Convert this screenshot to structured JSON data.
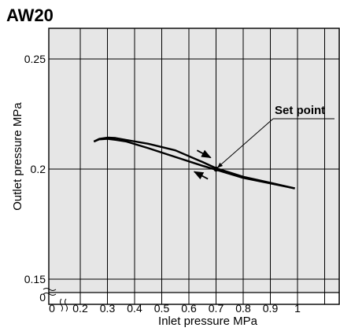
{
  "chart_data": {
    "type": "line",
    "title": "AW20",
    "xlabel": "Inlet pressure  MPa",
    "ylabel": "Outlet pressure  MPa",
    "xlim": [
      0.2,
      1.1
    ],
    "ylim": [
      0.15,
      0.265
    ],
    "axis_break_label": "0",
    "xticks": [
      0.2,
      0.3,
      0.4,
      0.5,
      0.6,
      0.7,
      0.8,
      0.9,
      1
    ],
    "xtick_labels": [
      "0.2",
      "0.3",
      "0.4",
      "0.5",
      "0.6",
      "0.7",
      "0.8",
      "0.9",
      "1"
    ],
    "yticks": [
      0.15,
      0.2,
      0.25
    ],
    "ytick_labels": [
      "0.15",
      "0.2",
      "0.25"
    ],
    "grid": true,
    "plot_background": "#e6e6e6",
    "series": [
      {
        "x": [
          0.25,
          0.27,
          0.3,
          0.33,
          0.37,
          0.45,
          0.55,
          0.65,
          0.7,
          0.8,
          0.9,
          0.99
        ],
        "y": [
          0.2125,
          0.2137,
          0.2143,
          0.2141,
          0.2132,
          0.2115,
          0.2085,
          0.2032,
          0.2004,
          0.1965,
          0.1938,
          0.1912
        ]
      },
      {
        "x": [
          0.25,
          0.27,
          0.3,
          0.33,
          0.37,
          0.45,
          0.55,
          0.65,
          0.7,
          0.8,
          0.9,
          0.99
        ],
        "y": [
          0.2125,
          0.2135,
          0.2137,
          0.2133,
          0.2125,
          0.2095,
          0.2055,
          0.2015,
          0.1997,
          0.196,
          0.1935,
          0.1912
        ]
      }
    ],
    "set_point": {
      "x": 0.7,
      "y": 0.2,
      "label": "Set point"
    },
    "annotations": [
      {
        "name": "upper-arrow",
        "tail_x": 0.63,
        "tail_y": 0.2085,
        "head_x": 0.68,
        "head_y": 0.2052
      },
      {
        "name": "lower-arrow",
        "tail_x": 0.67,
        "tail_y": 0.1955,
        "head_x": 0.62,
        "head_y": 0.1988
      }
    ],
    "colors": {
      "line": "#000000",
      "plot_background": "#e6e6e6"
    }
  }
}
